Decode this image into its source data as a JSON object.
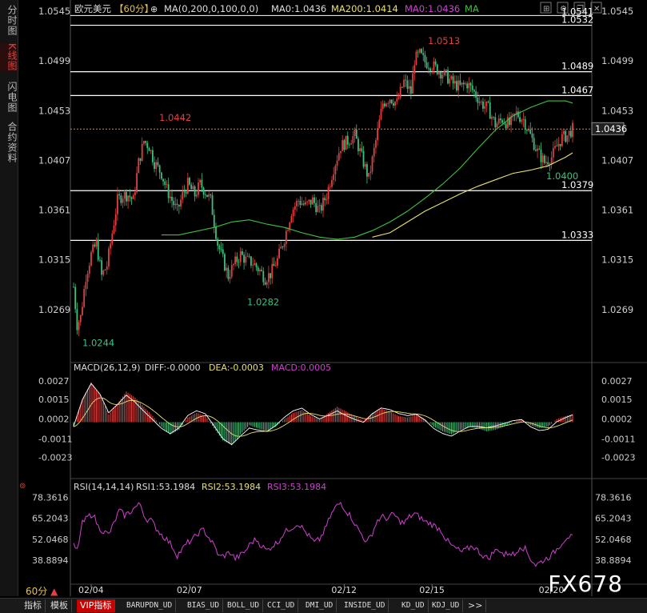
{
  "sidebar": {
    "tabs": [
      {
        "label": "分时图",
        "active": false
      },
      {
        "label": "K线图",
        "active": true
      },
      {
        "label": "闪电图",
        "active": false
      },
      {
        "label": "合约资料",
        "active": false
      }
    ]
  },
  "header": {
    "symbol": "欧元美元",
    "period": "【60分】",
    "ma_params": "MA(0,200,0,100,0,0)",
    "ma0_text": "MA0:1.0436",
    "ma200_text": "MA200:1.0414",
    "ma0_pink_text": "MA0:1.0436",
    "ma_label": "MA"
  },
  "colors": {
    "up": "#e04040",
    "down": "#3cc080",
    "ma100": "#40c040",
    "ma200": "#e8e070",
    "macd_diff": "#ffffff",
    "macd_dea": "#e8e070",
    "rsi": "#d040d0",
    "header_yellow": "#e8c040",
    "header_pink": "#d040d0",
    "header_green": "#40c040",
    "price_red": "#e04040",
    "price_green": "#3cc080"
  },
  "main_panel": {
    "y_ticks_left": [
      "1.0545",
      "1.0499",
      "1.0453",
      "1.0407",
      "1.0361",
      "1.0315",
      "1.0269"
    ],
    "y_ticks_right": [
      "1.0545",
      "1.0499",
      "1.0453",
      "1.0407",
      "1.0361",
      "1.0315",
      "1.0269"
    ],
    "hlines": [
      "1.0532",
      "1.0489",
      "1.0467",
      "1.0379",
      "1.0333"
    ],
    "hline_partial_label": "1.0541",
    "current_price": "1.0436",
    "annotations": {
      "high": "1.0513",
      "peak_left": "1.0442",
      "low": "1.0244",
      "trough": "1.0282",
      "recent_low": "1.0400"
    }
  },
  "macd_panel": {
    "title": "MACD(26,12,9)",
    "diff_text": "DIFF:-0.0000",
    "dea_text": "DEA:-0.0003",
    "macd_text": "MACD:0.0005",
    "y_ticks": [
      "0.0027",
      "0.0015",
      "0.0002",
      "-0.0011",
      "-0.0023"
    ]
  },
  "rsi_panel": {
    "title": "RSI(14,14,14)",
    "rsi1_text": "RSI1:53.1984",
    "rsi2_text": "RSI2:53.1984",
    "rsi3_text": "RSI3:53.1984",
    "y_ticks": [
      "78.3616",
      "65.2043",
      "52.0468",
      "38.8894"
    ]
  },
  "x_axis": {
    "labels": [
      "02/04",
      "02/07",
      "02/12",
      "02/15",
      "02/20"
    ]
  },
  "period_label": "60分",
  "watermark": "FX678",
  "bottom_tabs": [
    "指标",
    "模板",
    "VIP指标",
    "BARUPDN_UD",
    "BIAS_UD",
    "BOLL_UD",
    "CCI_UD",
    "DMI_UD",
    "INSIDE_UD",
    "KD_UD",
    "KDJ_UD",
    ">>"
  ],
  "chart_data": {
    "type": "candlestick",
    "title": "欧元美元【60分】",
    "ylim": [
      1.024,
      1.0545
    ],
    "anchors": [
      [
        0,
        1.029
      ],
      [
        2,
        1.0255
      ],
      [
        4,
        1.0262
      ],
      [
        7,
        1.03
      ],
      [
        10,
        1.032
      ],
      [
        13,
        1.033
      ],
      [
        16,
        1.03
      ],
      [
        19,
        1.031
      ],
      [
        22,
        1.034
      ],
      [
        25,
        1.037
      ],
      [
        28,
        1.0375
      ],
      [
        31,
        1.0375
      ],
      [
        34,
        1.037
      ],
      [
        37,
        1.0405
      ],
      [
        40,
        1.0425
      ],
      [
        43,
        1.042
      ],
      [
        46,
        1.0405
      ],
      [
        50,
        1.0395
      ],
      [
        53,
        1.038
      ],
      [
        56,
        1.037
      ],
      [
        59,
        1.036
      ],
      [
        62,
        1.0375
      ],
      [
        65,
        1.0385
      ],
      [
        69,
        1.0375
      ],
      [
        72,
        1.0385
      ],
      [
        75,
        1.0378
      ],
      [
        78,
        1.037
      ],
      [
        82,
        1.033
      ],
      [
        85,
        1.0315
      ],
      [
        88,
        1.03
      ],
      [
        91,
        1.031
      ],
      [
        95,
        1.032
      ],
      [
        98,
        1.0315
      ],
      [
        102,
        1.0312
      ],
      [
        106,
        1.0305
      ],
      [
        109,
        1.0298
      ],
      [
        112,
        1.0302
      ],
      [
        116,
        1.0315
      ],
      [
        120,
        1.0335
      ],
      [
        124,
        1.036
      ],
      [
        128,
        1.037
      ],
      [
        132,
        1.0365
      ],
      [
        136,
        1.037
      ],
      [
        140,
        1.036
      ],
      [
        144,
        1.0375
      ],
      [
        148,
        1.04
      ],
      [
        152,
        1.042
      ],
      [
        156,
        1.0425
      ],
      [
        160,
        1.043
      ],
      [
        164,
        1.041
      ],
      [
        168,
        1.039
      ],
      [
        172,
        1.0425
      ],
      [
        176,
        1.046
      ],
      [
        180,
        1.0465
      ],
      [
        184,
        1.046
      ],
      [
        188,
        1.048
      ],
      [
        192,
        1.047
      ],
      [
        194,
        1.05
      ],
      [
        197,
        1.0505
      ],
      [
        200,
        1.0498
      ],
      [
        204,
        1.0495
      ],
      [
        208,
        1.049
      ],
      [
        212,
        1.0485
      ],
      [
        216,
        1.0478
      ],
      [
        220,
        1.0475
      ],
      [
        224,
        1.0478
      ],
      [
        228,
        1.047
      ],
      [
        232,
        1.046
      ],
      [
        236,
        1.0455
      ],
      [
        240,
        1.044
      ],
      [
        244,
        1.0445
      ],
      [
        248,
        1.044
      ],
      [
        252,
        1.045
      ],
      [
        256,
        1.0445
      ],
      [
        260,
        1.043
      ],
      [
        264,
        1.0415
      ],
      [
        268,
        1.0405
      ],
      [
        272,
        1.041
      ],
      [
        275,
        1.042
      ],
      [
        278,
        1.0428
      ],
      [
        281,
        1.043
      ],
      [
        284,
        1.0436
      ]
    ],
    "ma100": [
      [
        0,
        null
      ],
      [
        50,
        1.0338
      ],
      [
        60,
        1.0338
      ],
      [
        80,
        1.0345
      ],
      [
        90,
        1.035
      ],
      [
        100,
        1.0352
      ],
      [
        110,
        1.0348
      ],
      [
        120,
        1.0345
      ],
      [
        130,
        1.034
      ],
      [
        140,
        1.0336
      ],
      [
        150,
        1.0334
      ],
      [
        160,
        1.0336
      ],
      [
        170,
        1.0342
      ],
      [
        180,
        1.035
      ],
      [
        190,
        1.036
      ],
      [
        200,
        1.0372
      ],
      [
        210,
        1.0385
      ],
      [
        220,
        1.04
      ],
      [
        230,
        1.0418
      ],
      [
        240,
        1.0435
      ],
      [
        250,
        1.0448
      ],
      [
        260,
        1.0456
      ],
      [
        270,
        1.0462
      ],
      [
        280,
        1.0462
      ],
      [
        284,
        1.046
      ]
    ],
    "ma200": [
      [
        170,
        1.0336
      ],
      [
        180,
        1.034
      ],
      [
        190,
        1.035
      ],
      [
        200,
        1.036
      ],
      [
        210,
        1.0368
      ],
      [
        220,
        1.0376
      ],
      [
        230,
        1.0383
      ],
      [
        240,
        1.0389
      ],
      [
        250,
        1.0395
      ],
      [
        260,
        1.0398
      ],
      [
        270,
        1.0402
      ],
      [
        280,
        1.041
      ],
      [
        284,
        1.0414
      ]
    ],
    "rsi": [
      [
        0,
        48
      ],
      [
        2,
        45
      ],
      [
        5,
        62
      ],
      [
        8,
        66
      ],
      [
        11,
        68
      ],
      [
        14,
        60
      ],
      [
        17,
        57
      ],
      [
        20,
        55
      ],
      [
        23,
        62
      ],
      [
        26,
        70
      ],
      [
        29,
        67
      ],
      [
        32,
        69
      ],
      [
        35,
        72
      ],
      [
        38,
        74
      ],
      [
        41,
        65
      ],
      [
        44,
        64
      ],
      [
        47,
        59
      ],
      [
        50,
        55
      ],
      [
        53,
        52
      ],
      [
        56,
        48
      ],
      [
        59,
        42
      ],
      [
        62,
        46
      ],
      [
        65,
        50
      ],
      [
        68,
        52
      ],
      [
        71,
        56
      ],
      [
        74,
        58
      ],
      [
        77,
        53
      ],
      [
        80,
        48
      ],
      [
        83,
        41
      ],
      [
        86,
        42
      ],
      [
        89,
        44
      ],
      [
        92,
        40
      ],
      [
        95,
        42
      ],
      [
        98,
        45
      ],
      [
        101,
        50
      ],
      [
        104,
        52
      ],
      [
        107,
        48
      ],
      [
        110,
        45
      ],
      [
        113,
        48
      ],
      [
        116,
        50
      ],
      [
        119,
        55
      ],
      [
        122,
        58
      ],
      [
        125,
        60
      ],
      [
        128,
        62
      ],
      [
        131,
        58
      ],
      [
        134,
        54
      ],
      [
        137,
        50
      ],
      [
        140,
        52
      ],
      [
        143,
        58
      ],
      [
        146,
        66
      ],
      [
        149,
        72
      ],
      [
        152,
        75
      ],
      [
        155,
        70
      ],
      [
        158,
        66
      ],
      [
        161,
        60
      ],
      [
        164,
        55
      ],
      [
        167,
        50
      ],
      [
        170,
        56
      ],
      [
        173,
        64
      ],
      [
        176,
        66
      ],
      [
        179,
        65
      ],
      [
        182,
        68
      ],
      [
        185,
        64
      ],
      [
        188,
        62
      ],
      [
        191,
        66
      ],
      [
        194,
        68
      ],
      [
        197,
        66
      ],
      [
        200,
        63
      ],
      [
        203,
        62
      ],
      [
        206,
        60
      ],
      [
        209,
        58
      ],
      [
        212,
        52
      ],
      [
        215,
        48
      ],
      [
        218,
        46
      ],
      [
        221,
        44
      ],
      [
        224,
        46
      ],
      [
        227,
        48
      ],
      [
        230,
        45
      ],
      [
        233,
        42
      ],
      [
        236,
        40
      ],
      [
        239,
        44
      ],
      [
        242,
        46
      ],
      [
        245,
        42
      ],
      [
        248,
        44
      ],
      [
        251,
        42
      ],
      [
        254,
        48
      ],
      [
        257,
        46
      ],
      [
        260,
        40
      ],
      [
        263,
        36
      ],
      [
        266,
        38
      ],
      [
        269,
        40
      ],
      [
        272,
        42
      ],
      [
        275,
        46
      ],
      [
        278,
        50
      ],
      [
        281,
        54
      ],
      [
        284,
        53
      ]
    ],
    "rsi_ylim": [
      30,
      80
    ],
    "macd": [
      [
        0,
        -0.0003
      ],
      [
        5,
        0.0015
      ],
      [
        10,
        0.0026
      ],
      [
        15,
        0.0018
      ],
      [
        20,
        0.0005
      ],
      [
        25,
        0.0012
      ],
      [
        30,
        0.002
      ],
      [
        35,
        0.0016
      ],
      [
        40,
        0.001
      ],
      [
        45,
        0.0004
      ],
      [
        50,
        -0.0003
      ],
      [
        55,
        -0.0008
      ],
      [
        60,
        -0.0005
      ],
      [
        65,
        0.0003
      ],
      [
        70,
        0.0006
      ],
      [
        75,
        0.0004
      ],
      [
        80,
        -0.0004
      ],
      [
        85,
        -0.0012
      ],
      [
        90,
        -0.0015
      ],
      [
        95,
        -0.0008
      ],
      [
        100,
        -0.0002
      ],
      [
        105,
        -0.0004
      ],
      [
        110,
        -0.0006
      ],
      [
        115,
        -0.0003
      ],
      [
        120,
        0.0002
      ],
      [
        125,
        0.0006
      ],
      [
        130,
        0.0008
      ],
      [
        135,
        0.0004
      ],
      [
        140,
        0.0002
      ],
      [
        145,
        0.0006
      ],
      [
        150,
        0.001
      ],
      [
        155,
        0.0007
      ],
      [
        160,
        0.0004
      ],
      [
        165,
        0.0001
      ],
      [
        170,
        0.0006
      ],
      [
        175,
        0.0009
      ],
      [
        180,
        0.0007
      ],
      [
        185,
        0.0004
      ],
      [
        190,
        0.0003
      ],
      [
        195,
        0.0005
      ],
      [
        200,
        0.0002
      ],
      [
        205,
        -0.0003
      ],
      [
        210,
        -0.0006
      ],
      [
        215,
        -0.0008
      ],
      [
        220,
        -0.0005
      ],
      [
        225,
        -0.0003
      ],
      [
        230,
        -0.0004
      ],
      [
        235,
        -0.0006
      ],
      [
        240,
        -0.0005
      ],
      [
        245,
        -0.0003
      ],
      [
        250,
        0.0
      ],
      [
        255,
        0.0002
      ],
      [
        260,
        -0.0002
      ],
      [
        265,
        -0.0004
      ],
      [
        270,
        -0.0003
      ],
      [
        275,
        0.0002
      ],
      [
        280,
        0.0004
      ],
      [
        284,
        0.0005
      ]
    ],
    "macd_ylim": [
      -0.003,
      0.003
    ]
  }
}
